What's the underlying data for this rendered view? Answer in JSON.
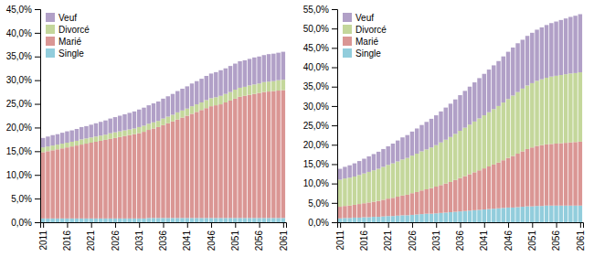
{
  "chart_data": [
    {
      "type": "bar",
      "stacked": true,
      "legend": "upper left",
      "x": [
        2011,
        2012,
        2013,
        2014,
        2015,
        2016,
        2017,
        2018,
        2019,
        2020,
        2021,
        2022,
        2023,
        2024,
        2025,
        2026,
        2027,
        2028,
        2029,
        2030,
        2031,
        2032,
        2033,
        2034,
        2035,
        2036,
        2037,
        2038,
        2039,
        2040,
        2041,
        2042,
        2043,
        2044,
        2045,
        2046,
        2047,
        2048,
        2049,
        2050,
        2051,
        2052,
        2053,
        2054,
        2055,
        2056,
        2057,
        2058,
        2059,
        2060,
        2061
      ],
      "xlim": [
        2010.4,
        2061.6
      ],
      "xticks": [
        2011,
        2016,
        2021,
        2026,
        2031,
        2036,
        2041,
        2046,
        2051,
        2056,
        2061
      ],
      "ylim": [
        0,
        0.45
      ],
      "yticks": [
        {
          "value": 0.0,
          "label": "0,0%"
        },
        {
          "value": 0.05,
          "label": "5,0%"
        },
        {
          "value": 0.1,
          "label": "10,0%"
        },
        {
          "value": 0.15,
          "label": "15,0%"
        },
        {
          "value": 0.2,
          "label": "20,0%"
        },
        {
          "value": 0.25,
          "label": "25,0%"
        },
        {
          "value": 0.3,
          "label": "30,0%"
        },
        {
          "value": 0.35,
          "label": "35,0%"
        },
        {
          "value": 0.4,
          "label": "40,0%"
        },
        {
          "value": 0.45,
          "label": "45,0%"
        }
      ],
      "series": [
        {
          "name": "Single",
          "color": "#92CDDC",
          "values": [
            0.008,
            0.008,
            0.008,
            0.008,
            0.008,
            0.008,
            0.008,
            0.008,
            0.008,
            0.008,
            0.008,
            0.008,
            0.008,
            0.008,
            0.008,
            0.008,
            0.008,
            0.008,
            0.008,
            0.008,
            0.008,
            0.008,
            0.009,
            0.009,
            0.009,
            0.009,
            0.009,
            0.009,
            0.009,
            0.009,
            0.009,
            0.009,
            0.009,
            0.009,
            0.009,
            0.009,
            0.009,
            0.009,
            0.009,
            0.009,
            0.009,
            0.009,
            0.009,
            0.009,
            0.009,
            0.009,
            0.009,
            0.009,
            0.009,
            0.009,
            0.009
          ]
        },
        {
          "name": "Marié",
          "color": "#DA9694",
          "values": [
            0.14,
            0.142,
            0.144,
            0.146,
            0.148,
            0.15,
            0.152,
            0.154,
            0.156,
            0.158,
            0.16,
            0.162,
            0.164,
            0.166,
            0.168,
            0.17,
            0.172,
            0.174,
            0.176,
            0.178,
            0.18,
            0.183,
            0.186,
            0.189,
            0.192,
            0.196,
            0.2,
            0.204,
            0.208,
            0.212,
            0.216,
            0.22,
            0.224,
            0.228,
            0.232,
            0.236,
            0.238,
            0.24,
            0.244,
            0.248,
            0.252,
            0.256,
            0.258,
            0.26,
            0.262,
            0.264,
            0.266,
            0.267,
            0.268,
            0.269,
            0.27
          ]
        },
        {
          "name": "Divorcé",
          "color": "#C4D79B",
          "values": [
            0.01,
            0.01,
            0.01,
            0.01,
            0.01,
            0.01,
            0.01,
            0.01,
            0.011,
            0.011,
            0.011,
            0.011,
            0.011,
            0.011,
            0.012,
            0.012,
            0.012,
            0.012,
            0.012,
            0.012,
            0.013,
            0.013,
            0.013,
            0.013,
            0.013,
            0.014,
            0.014,
            0.014,
            0.015,
            0.015,
            0.015,
            0.016,
            0.016,
            0.016,
            0.017,
            0.017,
            0.017,
            0.018,
            0.018,
            0.018,
            0.019,
            0.019,
            0.019,
            0.02,
            0.02,
            0.02,
            0.021,
            0.021,
            0.021,
            0.022,
            0.022
          ]
        },
        {
          "name": "Veuf",
          "color": "#B1A0C7",
          "values": [
            0.02,
            0.021,
            0.022,
            0.022,
            0.023,
            0.024,
            0.024,
            0.025,
            0.026,
            0.026,
            0.027,
            0.028,
            0.029,
            0.03,
            0.031,
            0.032,
            0.033,
            0.034,
            0.035,
            0.036,
            0.037,
            0.038,
            0.039,
            0.04,
            0.041,
            0.042,
            0.043,
            0.044,
            0.045,
            0.046,
            0.047,
            0.048,
            0.049,
            0.05,
            0.051,
            0.052,
            0.053,
            0.054,
            0.054,
            0.055,
            0.055,
            0.056,
            0.056,
            0.056,
            0.057,
            0.057,
            0.057,
            0.058,
            0.058,
            0.058,
            0.059
          ]
        }
      ]
    },
    {
      "type": "bar",
      "stacked": true,
      "legend": "upper left",
      "x": [
        2011,
        2012,
        2013,
        2014,
        2015,
        2016,
        2017,
        2018,
        2019,
        2020,
        2021,
        2022,
        2023,
        2024,
        2025,
        2026,
        2027,
        2028,
        2029,
        2030,
        2031,
        2032,
        2033,
        2034,
        2035,
        2036,
        2037,
        2038,
        2039,
        2040,
        2041,
        2042,
        2043,
        2044,
        2045,
        2046,
        2047,
        2048,
        2049,
        2050,
        2051,
        2052,
        2053,
        2054,
        2055,
        2056,
        2057,
        2058,
        2059,
        2060,
        2061
      ],
      "xlim": [
        2010.4,
        2061.6
      ],
      "xticks": [
        2011,
        2016,
        2021,
        2026,
        2031,
        2036,
        2041,
        2046,
        2051,
        2056,
        2061
      ],
      "ylim": [
        0,
        0.55
      ],
      "yticks": [
        {
          "value": 0.0,
          "label": "0,0%"
        },
        {
          "value": 0.05,
          "label": "5,0%"
        },
        {
          "value": 0.1,
          "label": "10,0%"
        },
        {
          "value": 0.15,
          "label": "15,0%"
        },
        {
          "value": 0.2,
          "label": "20,0%"
        },
        {
          "value": 0.25,
          "label": "25,0%"
        },
        {
          "value": 0.3,
          "label": "30,0%"
        },
        {
          "value": 0.35,
          "label": "35,0%"
        },
        {
          "value": 0.4,
          "label": "40,0%"
        },
        {
          "value": 0.45,
          "label": "45,0%"
        },
        {
          "value": 0.5,
          "label": "50,0%"
        },
        {
          "value": 0.55,
          "label": "55,0%"
        }
      ],
      "series": [
        {
          "name": "Single",
          "color": "#92CDDC",
          "values": [
            0.01,
            0.011,
            0.011,
            0.012,
            0.012,
            0.013,
            0.013,
            0.014,
            0.014,
            0.015,
            0.016,
            0.016,
            0.017,
            0.018,
            0.018,
            0.019,
            0.02,
            0.021,
            0.022,
            0.022,
            0.023,
            0.024,
            0.025,
            0.026,
            0.027,
            0.028,
            0.029,
            0.03,
            0.031,
            0.032,
            0.033,
            0.034,
            0.035,
            0.036,
            0.037,
            0.038,
            0.038,
            0.039,
            0.04,
            0.041,
            0.041,
            0.042,
            0.042,
            0.043,
            0.043,
            0.043,
            0.043,
            0.043,
            0.043,
            0.043,
            0.043
          ]
        },
        {
          "name": "Marié",
          "color": "#DA9694",
          "values": [
            0.03,
            0.031,
            0.032,
            0.033,
            0.035,
            0.036,
            0.038,
            0.039,
            0.041,
            0.043,
            0.045,
            0.047,
            0.049,
            0.051,
            0.053,
            0.056,
            0.058,
            0.061,
            0.063,
            0.066,
            0.069,
            0.072,
            0.075,
            0.078,
            0.082,
            0.086,
            0.09,
            0.094,
            0.098,
            0.102,
            0.106,
            0.11,
            0.114,
            0.118,
            0.123,
            0.128,
            0.133,
            0.138,
            0.143,
            0.148,
            0.152,
            0.155,
            0.157,
            0.158,
            0.159,
            0.16,
            0.161,
            0.162,
            0.163,
            0.164,
            0.165
          ]
        },
        {
          "name": "Divorcé",
          "color": "#C4D79B",
          "values": [
            0.07,
            0.071,
            0.072,
            0.073,
            0.075,
            0.077,
            0.079,
            0.081,
            0.083,
            0.085,
            0.087,
            0.089,
            0.091,
            0.093,
            0.095,
            0.097,
            0.099,
            0.101,
            0.103,
            0.105,
            0.107,
            0.11,
            0.113,
            0.116,
            0.119,
            0.122,
            0.125,
            0.128,
            0.131,
            0.134,
            0.137,
            0.14,
            0.143,
            0.146,
            0.149,
            0.152,
            0.156,
            0.159,
            0.162,
            0.164,
            0.166,
            0.168,
            0.17,
            0.172,
            0.174,
            0.175,
            0.176,
            0.177,
            0.178,
            0.178,
            0.179
          ]
        },
        {
          "name": "Veuf",
          "color": "#B1A0C7",
          "values": [
            0.028,
            0.03,
            0.032,
            0.034,
            0.036,
            0.038,
            0.04,
            0.042,
            0.044,
            0.046,
            0.048,
            0.051,
            0.054,
            0.057,
            0.059,
            0.062,
            0.065,
            0.068,
            0.071,
            0.074,
            0.077,
            0.08,
            0.083,
            0.086,
            0.089,
            0.092,
            0.095,
            0.098,
            0.101,
            0.104,
            0.107,
            0.11,
            0.113,
            0.116,
            0.119,
            0.122,
            0.124,
            0.126,
            0.126,
            0.128,
            0.13,
            0.132,
            0.134,
            0.136,
            0.138,
            0.14,
            0.142,
            0.144,
            0.146,
            0.148,
            0.15
          ]
        }
      ]
    }
  ]
}
